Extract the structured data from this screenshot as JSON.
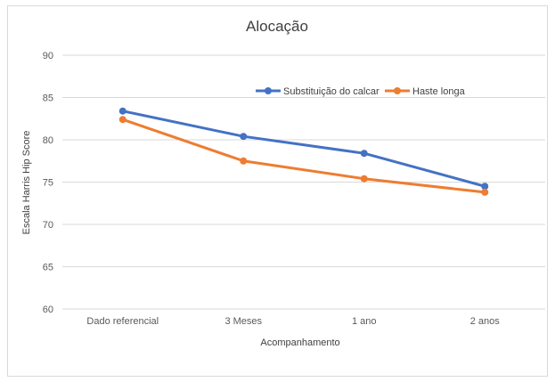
{
  "chart_data": {
    "type": "line",
    "title": "Alocação",
    "xlabel": "Acompanhamento",
    "ylabel": "Escala Harris Hip Score",
    "categories": [
      "Dado referencial",
      "3 Meses",
      "1 ano",
      "2 anos"
    ],
    "ylim": [
      60,
      90
    ],
    "yticks": [
      60,
      65,
      70,
      75,
      80,
      85,
      90
    ],
    "grid": true,
    "legend_position": "top-right",
    "series": [
      {
        "name": "Substituição do calcar",
        "color": "#4472c4",
        "values": [
          83.4,
          80.4,
          78.4,
          74.5
        ]
      },
      {
        "name": "Haste longa",
        "color": "#ed7d31",
        "values": [
          82.4,
          77.5,
          75.4,
          73.8
        ]
      }
    ]
  }
}
